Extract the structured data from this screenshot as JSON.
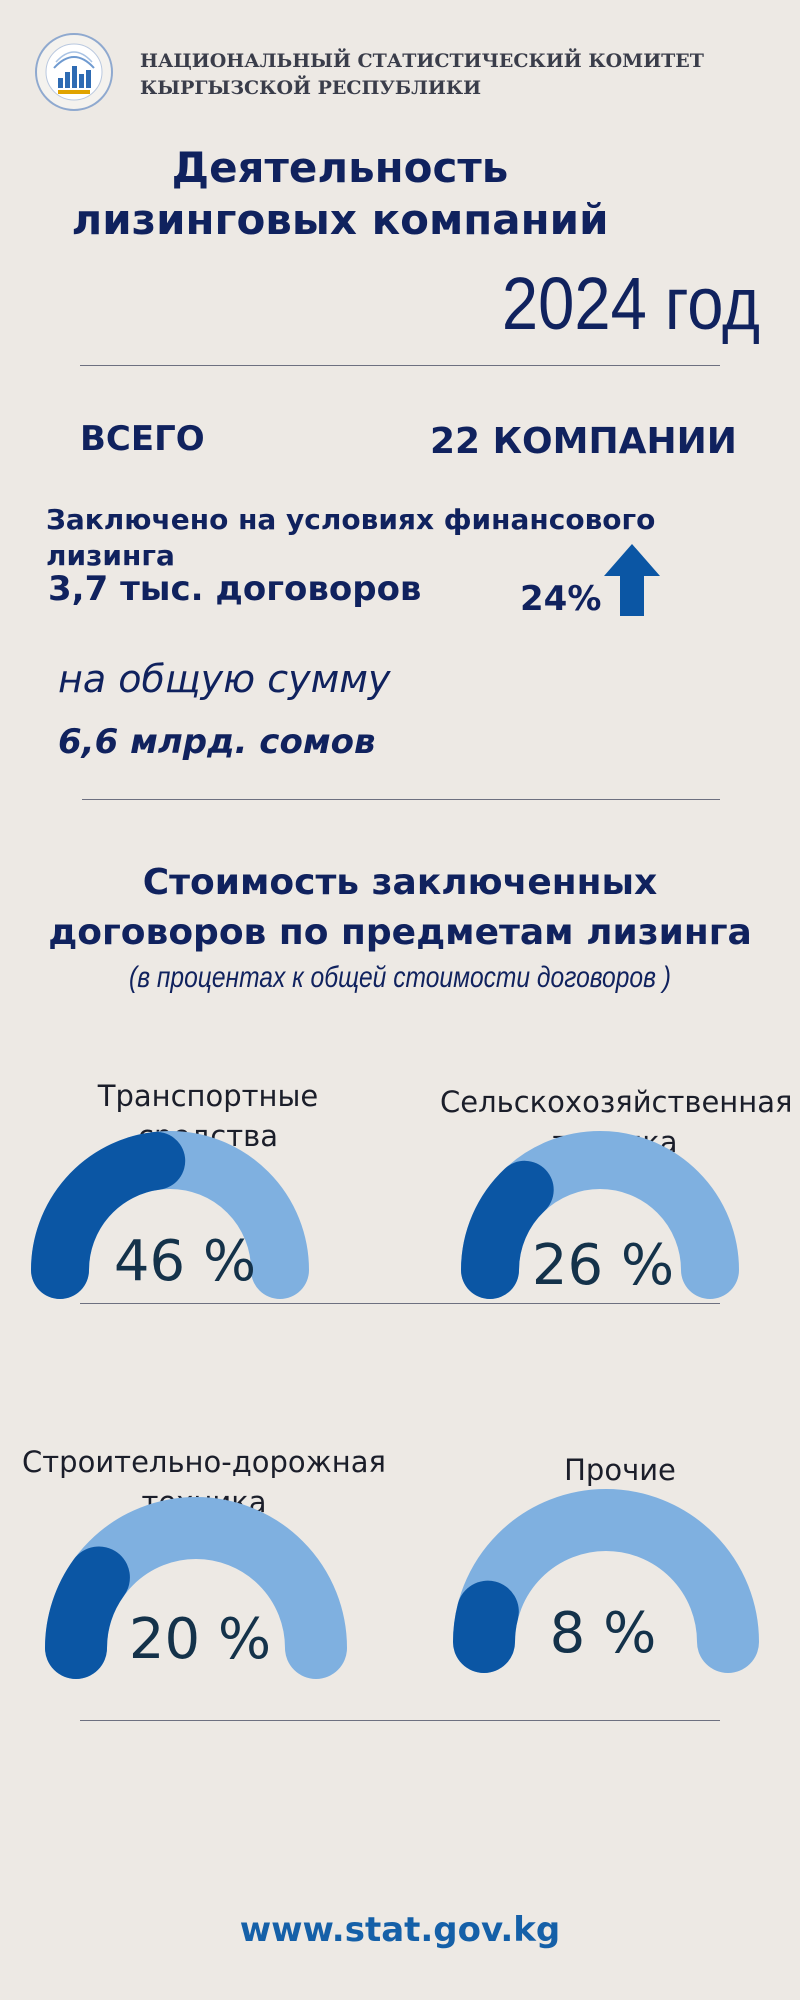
{
  "header": {
    "org_line1": "Национальный статистический комитет",
    "org_line2": "Кыргызской Республики",
    "logo_icon": "stat-committee-emblem-icon"
  },
  "title": "Деятельность лизинговых компаний",
  "year": "2024 год",
  "summary": {
    "total_label": "ВСЕГО",
    "total_value": "22 КОМПАНИИ",
    "finance_title": "Заключено на условиях финансового лизинга",
    "contracts": "3,7 тыс. договоров",
    "growth": "24%",
    "growth_icon": "arrow-up-icon",
    "sum_label": "на общую сумму",
    "sum_value": "6,6 млрд. сомов"
  },
  "section": {
    "title": "Стоимость заключенных договоров по предметам лизинга",
    "subtitle": "(в процентах к общей стоимости договоров )"
  },
  "chart_data": {
    "type": "gauge",
    "unit": "%",
    "categories": [
      "Транспортные средства",
      "Сельскохозяйственная техника",
      "Строительно-дорожная техника",
      "Прочие"
    ],
    "values": [
      46,
      26,
      20,
      8
    ],
    "labels": [
      "46 %",
      "26 %",
      "20 %",
      "8 %"
    ],
    "colors": {
      "track": "#7fb0e0",
      "fill": "#0b56a4"
    },
    "range": [
      0,
      100
    ]
  },
  "footer": {
    "url": "www.stat.gov.kg"
  },
  "colors": {
    "navy": "#10225e",
    "blue": "#0b56a4",
    "light_blue": "#7fb0e0",
    "background": "#ede9e4"
  }
}
